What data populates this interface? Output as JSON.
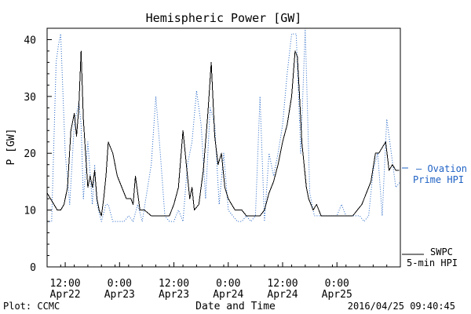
{
  "chart_data": {
    "type": "line",
    "title": "Hemispheric Power [GW]",
    "xlabel": "Date and Time",
    "ylabel": "P [GW]",
    "ylim": [
      0,
      42
    ],
    "xlim": [
      "2016-04-22T08:00",
      "2016-04-25T14:00"
    ],
    "yticks": [
      0,
      10,
      20,
      30,
      40
    ],
    "xticks": [
      {
        "t": "2016-04-22T12:00",
        "line1": "12:00",
        "line2": "Apr22"
      },
      {
        "t": "2016-04-23T00:00",
        "line1": "0:00",
        "line2": "Apr23"
      },
      {
        "t": "2016-04-23T12:00",
        "line1": "12:00",
        "line2": "Apr23"
      },
      {
        "t": "2016-04-24T00:00",
        "line1": "0:00",
        "line2": "Apr24"
      },
      {
        "t": "2016-04-24T12:00",
        "line1": "12:00",
        "line2": "Apr24"
      },
      {
        "t": "2016-04-25T00:00",
        "line1": "0:00",
        "line2": "Apr25"
      }
    ],
    "series": [
      {
        "name": "SWPC 5-min HPI",
        "color": "#000000",
        "style": "solid",
        "x": [
          "2016-04-22T08:00",
          "2016-04-22T08:45",
          "2016-04-22T09:30",
          "2016-04-22T10:15",
          "2016-04-22T11:00",
          "2016-04-22T11:45",
          "2016-04-22T12:30",
          "2016-04-22T13:15",
          "2016-04-22T14:00",
          "2016-04-22T14:30",
          "2016-04-22T15:00",
          "2016-04-22T15:30",
          "2016-04-22T16:00",
          "2016-04-22T16:30",
          "2016-04-22T17:00",
          "2016-04-22T17:30",
          "2016-04-22T18:00",
          "2016-04-22T18:30",
          "2016-04-22T19:00",
          "2016-04-22T19:30",
          "2016-04-22T20:00",
          "2016-04-22T20:30",
          "2016-04-22T21:00",
          "2016-04-22T21:30",
          "2016-04-22T22:30",
          "2016-04-22T23:30",
          "2016-04-23T00:30",
          "2016-04-23T01:30",
          "2016-04-23T02:30",
          "2016-04-23T03:00",
          "2016-04-23T03:30",
          "2016-04-23T04:30",
          "2016-04-23T05:30",
          "2016-04-23T07:00",
          "2016-04-23T08:30",
          "2016-04-23T10:00",
          "2016-04-23T11:00",
          "2016-04-23T12:00",
          "2016-04-23T13:00",
          "2016-04-23T14:00",
          "2016-04-23T14:45",
          "2016-04-23T15:30",
          "2016-04-23T16:00",
          "2016-04-23T16:30",
          "2016-04-23T17:30",
          "2016-04-23T18:30",
          "2016-04-23T19:30",
          "2016-04-23T20:15",
          "2016-04-23T21:00",
          "2016-04-23T21:45",
          "2016-04-23T22:30",
          "2016-04-23T23:15",
          "2016-04-24T00:00",
          "2016-04-24T00:45",
          "2016-04-24T01:30",
          "2016-04-24T02:15",
          "2016-04-24T03:00",
          "2016-04-24T04:00",
          "2016-04-24T05:00",
          "2016-04-24T06:00",
          "2016-04-24T07:00",
          "2016-04-24T08:00",
          "2016-04-24T09:00",
          "2016-04-24T10:00",
          "2016-04-24T11:00",
          "2016-04-24T12:00",
          "2016-04-24T13:00",
          "2016-04-24T14:00",
          "2016-04-24T14:45",
          "2016-04-24T15:15",
          "2016-04-24T15:45",
          "2016-04-24T16:15",
          "2016-04-24T16:45",
          "2016-04-24T17:15",
          "2016-04-24T17:45",
          "2016-04-24T18:15",
          "2016-04-24T18:45",
          "2016-04-24T19:30",
          "2016-04-24T20:30",
          "2016-04-24T21:30",
          "2016-04-24T22:30",
          "2016-04-24T23:30",
          "2016-04-25T00:30",
          "2016-04-25T01:30",
          "2016-04-25T02:30",
          "2016-04-25T03:30",
          "2016-04-25T04:30",
          "2016-04-25T05:30",
          "2016-04-25T06:30",
          "2016-04-25T07:30",
          "2016-04-25T08:30",
          "2016-04-25T09:15",
          "2016-04-25T10:00",
          "2016-04-25T10:45",
          "2016-04-25T11:30",
          "2016-04-25T12:15",
          "2016-04-25T13:00",
          "2016-04-25T13:45"
        ],
        "y": [
          13,
          12,
          11,
          10,
          10,
          11,
          14,
          24,
          27,
          23,
          28,
          38,
          26,
          20,
          14,
          16,
          14,
          17,
          12,
          10,
          9,
          12,
          16,
          22,
          20,
          16,
          14,
          12,
          12,
          11,
          16,
          10,
          10,
          9,
          9,
          9,
          9,
          11,
          14,
          24,
          18,
          12,
          14,
          10,
          11,
          17,
          27,
          36,
          23,
          18,
          20,
          14,
          12,
          11,
          10,
          10,
          10,
          9,
          9,
          9,
          9,
          10,
          13,
          15,
          18,
          22,
          25,
          30,
          38,
          37,
          30,
          22,
          18,
          14,
          12,
          11,
          10,
          11,
          9,
          9,
          9,
          9,
          9,
          9,
          9,
          9,
          10,
          11,
          13,
          15,
          20,
          20,
          21,
          22,
          17,
          18,
          17,
          17
        ]
      },
      {
        "name": "Ovation Prime HPI",
        "color": "#1f62c4",
        "style": "dotted",
        "x": [
          "2016-04-22T08:00",
          "2016-04-22T09:00",
          "2016-04-22T10:00",
          "2016-04-22T10:30",
          "2016-04-22T11:00",
          "2016-04-22T12:00",
          "2016-04-22T13:00",
          "2016-04-22T14:00",
          "2016-04-22T15:00",
          "2016-04-22T15:30",
          "2016-04-22T16:00",
          "2016-04-22T17:00",
          "2016-04-22T18:00",
          "2016-04-22T18:30",
          "2016-04-22T19:00",
          "2016-04-22T20:00",
          "2016-04-22T21:00",
          "2016-04-22T21:30",
          "2016-04-22T22:30",
          "2016-04-22T23:30",
          "2016-04-23T00:00",
          "2016-04-23T01:00",
          "2016-04-23T02:00",
          "2016-04-23T03:00",
          "2016-04-23T04:00",
          "2016-04-23T05:00",
          "2016-04-23T06:00",
          "2016-04-23T07:00",
          "2016-04-23T08:00",
          "2016-04-23T09:00",
          "2016-04-23T10:00",
          "2016-04-23T11:00",
          "2016-04-23T12:00",
          "2016-04-23T13:00",
          "2016-04-23T14:00",
          "2016-04-23T15:00",
          "2016-04-23T16:00",
          "2016-04-23T17:00",
          "2016-04-23T18:00",
          "2016-04-23T19:00",
          "2016-04-23T20:00",
          "2016-04-23T21:00",
          "2016-04-23T22:00",
          "2016-04-23T23:00",
          "2016-04-24T00:00",
          "2016-04-24T01:00",
          "2016-04-24T02:00",
          "2016-04-24T03:00",
          "2016-04-24T04:00",
          "2016-04-24T05:00",
          "2016-04-24T06:00",
          "2016-04-24T07:00",
          "2016-04-24T08:00",
          "2016-04-24T09:00",
          "2016-04-24T10:00",
          "2016-04-24T11:00",
          "2016-04-24T12:00",
          "2016-04-24T13:00",
          "2016-04-24T14:00",
          "2016-04-24T15:00",
          "2016-04-24T16:00",
          "2016-04-24T17:00",
          "2016-04-24T18:00",
          "2016-04-24T19:00",
          "2016-04-24T20:00",
          "2016-04-24T21:00",
          "2016-04-24T22:00",
          "2016-04-24T23:00",
          "2016-04-25T00:00",
          "2016-04-25T01:00",
          "2016-04-25T02:00",
          "2016-04-25T03:00",
          "2016-04-25T04:00",
          "2016-04-25T05:00",
          "2016-04-25T06:00",
          "2016-04-25T07:00",
          "2016-04-25T08:00",
          "2016-04-25T09:00",
          "2016-04-25T10:00",
          "2016-04-25T11:00",
          "2016-04-25T12:00",
          "2016-04-25T13:00",
          "2016-04-25T14:00"
        ],
        "y": [
          8,
          8,
          36,
          39,
          41,
          20,
          11,
          25,
          29,
          25,
          12,
          22,
          11,
          18,
          11,
          8,
          11,
          11,
          8,
          8,
          8,
          8,
          9,
          8,
          11,
          8,
          13,
          18,
          30,
          20,
          9,
          8,
          8,
          10,
          8,
          18,
          22,
          31,
          25,
          12,
          28,
          25,
          11,
          20,
          10,
          9,
          8,
          8,
          9,
          8,
          9,
          30,
          8,
          20,
          16,
          20,
          25,
          34,
          41,
          41,
          20,
          42,
          13,
          9,
          9,
          9,
          9,
          9,
          9,
          11,
          9,
          9,
          9,
          9,
          8,
          9,
          17,
          20,
          9,
          26,
          20,
          14,
          15
        ]
      }
    ],
    "legend_placement": "right"
  },
  "legend": {
    "ovation_line1": "— Ovation",
    "ovation_line2": "Prime HPI",
    "swpc_line1": "SWPC",
    "swpc_line2": "5-min HPI"
  },
  "footer": {
    "plot_credit": "Plot: CCMC",
    "timestamp": "2016/04/25 09:40:45"
  },
  "colors": {
    "swpc": "#000000",
    "ovation": "#1f62c4"
  }
}
